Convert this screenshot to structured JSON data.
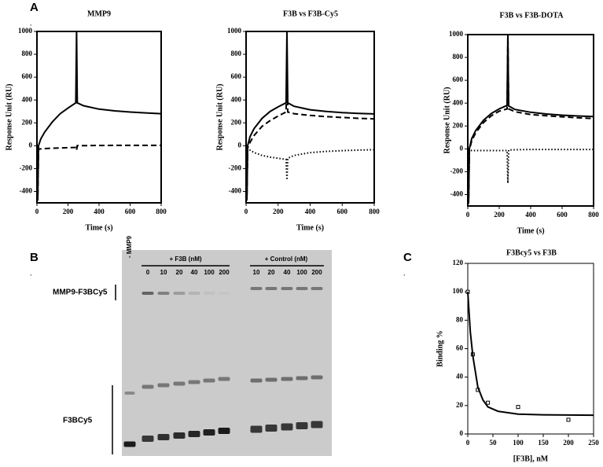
{
  "panel_labels": [
    "A",
    "B",
    "C"
  ],
  "panel_dots": [
    ".",
    ".",
    "."
  ],
  "chart_data": [
    {
      "type": "line",
      "title": "MMP9",
      "x_label": "Time (s)",
      "y_label": "Response Unit (RU)",
      "xlim": [
        0,
        800
      ],
      "xticks": [
        0,
        200,
        400,
        600,
        800
      ],
      "ylim": [
        -500,
        1000
      ],
      "yticks": [
        -400,
        -200,
        0,
        200,
        400,
        600,
        800,
        1000
      ],
      "series": [
        {
          "color": "#000000",
          "line_style": "solid",
          "x": [
            0,
            5,
            10,
            25,
            50,
            100,
            150,
            200,
            250,
            255,
            260,
            300,
            400,
            500,
            600,
            700,
            800
          ],
          "values": [
            0,
            -480,
            0,
            60,
            120,
            210,
            280,
            330,
            375,
            1000,
            375,
            350,
            320,
            305,
            295,
            287,
            280
          ]
        },
        {
          "color": "#000000",
          "line_style": "dashed",
          "x": [
            0,
            5,
            10,
            25,
            50,
            100,
            150,
            200,
            250,
            255,
            260,
            300,
            400,
            500,
            600,
            700,
            800
          ],
          "values": [
            0,
            -480,
            -30,
            -28,
            -25,
            -22,
            -20,
            -18,
            -15,
            -40,
            0,
            0,
            2,
            3,
            3,
            3,
            3
          ]
        }
      ]
    },
    {
      "type": "line",
      "title": "F3B vs F3B-Cy5",
      "x_label": "Time (s)",
      "y_label": "Response Unit (RU)",
      "xlim": [
        0,
        800
      ],
      "xticks": [
        0,
        200,
        400,
        600,
        800
      ],
      "ylim": [
        -500,
        1000
      ],
      "yticks": [
        -400,
        -200,
        0,
        200,
        400,
        600,
        800,
        1000
      ],
      "series": [
        {
          "color": "#000000",
          "line_style": "solid",
          "x": [
            0,
            5,
            10,
            25,
            50,
            100,
            150,
            200,
            250,
            255,
            260,
            300,
            400,
            500,
            600,
            700,
            800
          ],
          "values": [
            0,
            -480,
            0,
            80,
            150,
            240,
            300,
            340,
            375,
            1000,
            375,
            345,
            315,
            300,
            290,
            283,
            278
          ]
        },
        {
          "color": "#000000",
          "line_style": "dashed",
          "x": [
            0,
            5,
            10,
            25,
            50,
            100,
            150,
            200,
            250,
            255,
            260,
            300,
            400,
            500,
            600,
            700,
            800
          ],
          "values": [
            0,
            -480,
            -20,
            30,
            90,
            170,
            220,
            260,
            295,
            700,
            295,
            280,
            265,
            255,
            247,
            240,
            235
          ]
        },
        {
          "color": "#000000",
          "line_style": "dotted",
          "x": [
            0,
            5,
            10,
            25,
            50,
            100,
            150,
            200,
            250,
            255,
            260,
            300,
            400,
            500,
            600,
            700,
            800
          ],
          "values": [
            0,
            -480,
            -20,
            -40,
            -60,
            -85,
            -100,
            -110,
            -120,
            -300,
            -110,
            -85,
            -60,
            -50,
            -43,
            -38,
            -35
          ]
        }
      ]
    },
    {
      "type": "line",
      "title": "F3B vs F3B-DOTA",
      "x_label": "Time (s)",
      "y_label": "Response Unit (RU)",
      "xlim": [
        0,
        800
      ],
      "xticks": [
        0,
        200,
        400,
        600,
        800
      ],
      "ylim": [
        -500,
        1000
      ],
      "yticks": [
        -400,
        -200,
        0,
        200,
        400,
        600,
        800,
        1000
      ],
      "series": [
        {
          "color": "#000000",
          "line_style": "solid",
          "x": [
            0,
            5,
            10,
            25,
            50,
            100,
            150,
            200,
            250,
            255,
            260,
            300,
            400,
            500,
            600,
            700,
            800
          ],
          "values": [
            0,
            -480,
            0,
            90,
            160,
            250,
            310,
            350,
            380,
            1000,
            375,
            345,
            320,
            305,
            295,
            288,
            282
          ]
        },
        {
          "color": "#000000",
          "line_style": "dashed",
          "x": [
            0,
            5,
            10,
            25,
            50,
            100,
            150,
            200,
            250,
            255,
            260,
            300,
            400,
            500,
            600,
            700,
            800
          ],
          "values": [
            0,
            -480,
            -10,
            70,
            140,
            230,
            290,
            330,
            350,
            980,
            350,
            325,
            300,
            290,
            280,
            272,
            265
          ]
        },
        {
          "color": "#000000",
          "line_style": "dotted",
          "x": [
            0,
            5,
            10,
            25,
            50,
            100,
            150,
            200,
            250,
            255,
            260,
            300,
            400,
            500,
            600,
            700,
            800
          ],
          "values": [
            0,
            -480,
            -10,
            -15,
            -15,
            -15,
            -15,
            -15,
            -15,
            -300,
            -10,
            -8,
            -5,
            -5,
            -5,
            -5,
            -5
          ]
        }
      ]
    },
    {
      "type": "scatter",
      "title": "F3Bcy5 vs F3B",
      "x_label": "[F3B], nM",
      "y_label": "Binding %",
      "xlim": [
        0,
        250
      ],
      "xticks": [
        0,
        50,
        100,
        150,
        200,
        250
      ],
      "ylim": [
        0,
        120
      ],
      "yticks": [
        0,
        20,
        40,
        60,
        80,
        100,
        120
      ],
      "series": [
        {
          "color": "#000000",
          "marker": "square",
          "x": [
            0,
            10,
            20,
            40,
            100,
            200
          ],
          "values": [
            100,
            56,
            31,
            22,
            19,
            10
          ]
        },
        {
          "color": "#000000",
          "line_style": "solid",
          "x": [
            0,
            5,
            10,
            20,
            30,
            40,
            60,
            100,
            150,
            200,
            250
          ],
          "values": [
            100,
            72,
            55,
            33,
            24,
            19,
            16,
            14,
            13.5,
            13.3,
            13.2
          ]
        }
      ]
    }
  ],
  "gel": {
    "marker_lane": "- MMP9",
    "groups": [
      {
        "label": "+ F3B (nM)",
        "lanes": [
          "0",
          "10",
          "20",
          "40",
          "100",
          "200"
        ]
      },
      {
        "label": "+ Control (nM)",
        "lanes": [
          "10",
          "20",
          "40",
          "100",
          "200"
        ]
      }
    ],
    "band_labels": [
      "MMP9-F3BCy5",
      "F3BCy5"
    ]
  }
}
